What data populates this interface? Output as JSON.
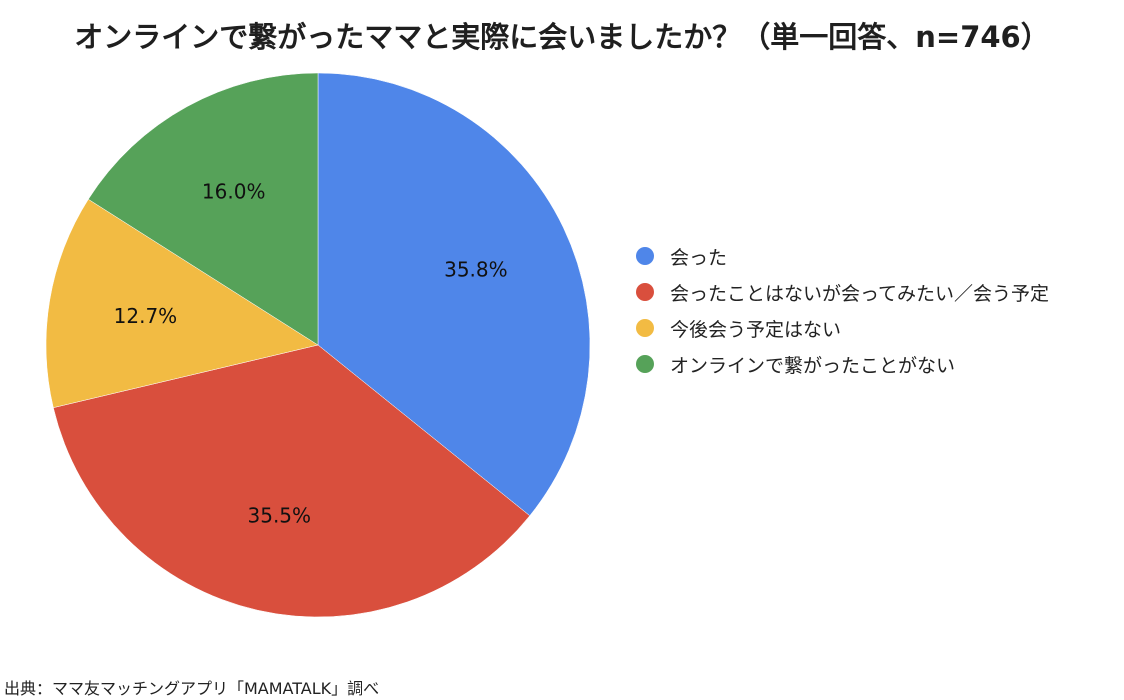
{
  "chart_data": {
    "type": "pie",
    "title": "オンラインで繋がったママと実際に会いましたか？（単一回答、n=746）",
    "categories": [
      "会った",
      "会ったことはないが会ってみたい／会う予定",
      "今後会う予定はない",
      "オンラインで繋がったことがない"
    ],
    "values": [
      35.8,
      35.5,
      12.7,
      16.0
    ],
    "data_labels": [
      "35.8%",
      "35.5%",
      "12.7%",
      "16.0%"
    ],
    "colors": [
      "#4f86e9",
      "#d94f3d",
      "#f2bb43",
      "#56a259"
    ],
    "legend_position": "right"
  },
  "source": "出典：ママ友マッチングアプリ「MAMATALK」調べ"
}
